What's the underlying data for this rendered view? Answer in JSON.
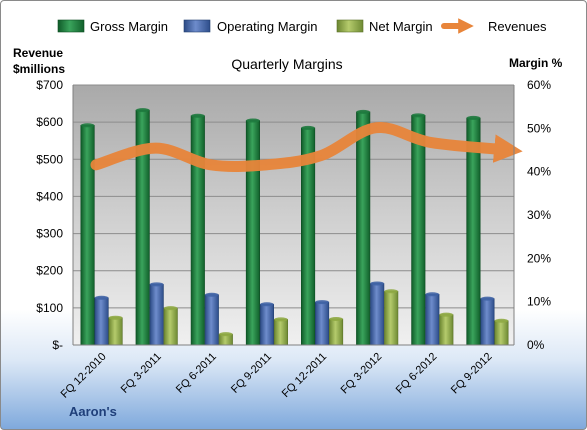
{
  "chart_data": {
    "type": "bar",
    "title": "Quarterly Margins",
    "company": "Aaron's",
    "y_left_label_line1": "Revenue",
    "y_left_label_line2": "$millions",
    "y_right_label": "Margin %",
    "categories": [
      "FQ 12-2010",
      "FQ 3-2011",
      "FQ 6-2011",
      "FQ 9-2011",
      "FQ 12-2011",
      "FQ 3-2012",
      "FQ 6-2012",
      "FQ 9-2012"
    ],
    "y_left_ticks": [
      "$-",
      "$100",
      "$200",
      "$300",
      "$400",
      "$500",
      "$600",
      "$700"
    ],
    "y_right_ticks": [
      "0%",
      "10%",
      "20%",
      "30%",
      "40%",
      "50%",
      "60%"
    ],
    "ylim_left": [
      0,
      700
    ],
    "ylim_right": [
      0,
      60
    ],
    "series": [
      {
        "name": "Gross Margin",
        "axis": "right",
        "type": "bar",
        "color": "#1e7a3e",
        "values": [
          50.7,
          54.2,
          52.9,
          51.8,
          50.1,
          53.8,
          53.0,
          52.4
        ]
      },
      {
        "name": "Operating Margin",
        "axis": "right",
        "type": "bar",
        "color": "#3f63a5",
        "values": [
          10.9,
          14.0,
          11.6,
          9.4,
          9.9,
          14.2,
          11.7,
          10.7
        ]
      },
      {
        "name": "Net Margin",
        "axis": "right",
        "type": "bar",
        "color": "#8faa44",
        "values": [
          6.3,
          8.5,
          2.5,
          5.9,
          6.0,
          12.4,
          7.0,
          5.6
        ]
      },
      {
        "name": "Revenues",
        "axis": "left",
        "type": "line",
        "color": "#e8853a",
        "values": [
          485,
          530,
          485,
          485,
          510,
          585,
          545,
          525
        ]
      }
    ],
    "grid": true,
    "legend_position": "top"
  }
}
